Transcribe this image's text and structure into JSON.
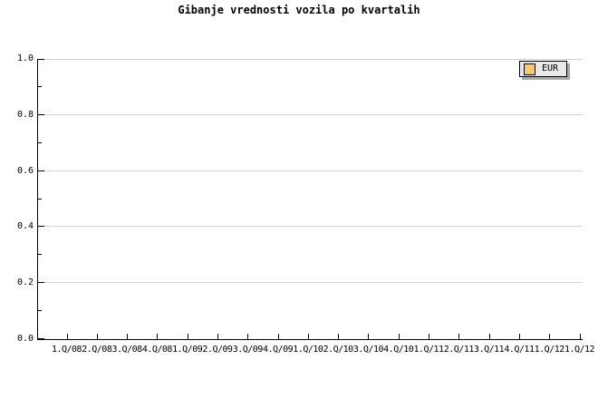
{
  "title": "Gibanje vrednosti vozila po kvartalih",
  "legend": {
    "label": "EUR",
    "swatch_color": "#FBCA66"
  },
  "colors": {
    "background": "#FFFFFF",
    "axis": "#000000",
    "gridline": "#D6D6D6",
    "legend_background": "#E9E9E9",
    "legend_shadow": "#A9A9A9",
    "text": "#000000"
  },
  "chart_data": {
    "type": "line",
    "title": "Gibanje vrednosti vozila po kvartalih",
    "categories": [
      "1.Q/08",
      "2.Q/08",
      "3.Q/08",
      "4.Q/08",
      "1.Q/09",
      "2.Q/09",
      "3.Q/09",
      "4.Q/09",
      "1.Q/10",
      "2.Q/10",
      "3.Q/10",
      "4.Q/10",
      "1.Q/11",
      "2.Q/11",
      "3.Q/11",
      "4.Q/11",
      "1.Q/12",
      "1.Q/12"
    ],
    "series": [
      {
        "name": "EUR",
        "color": "#FBCA66",
        "values": []
      }
    ],
    "xlabel": "",
    "ylabel": "",
    "ylim": [
      0.0,
      1.0
    ],
    "yticks": [
      0.0,
      0.2,
      0.4,
      0.6,
      0.8,
      1.0
    ],
    "ytick_labels": [
      "0.0",
      "0.2",
      "0.4",
      "0.6",
      "0.8",
      "1.0"
    ],
    "yminor_ticks": [
      0.1,
      0.3,
      0.5,
      0.7,
      0.9
    ],
    "grid": "horizontal-only",
    "legend_position": "top-right",
    "plot_area_empty": true
  }
}
